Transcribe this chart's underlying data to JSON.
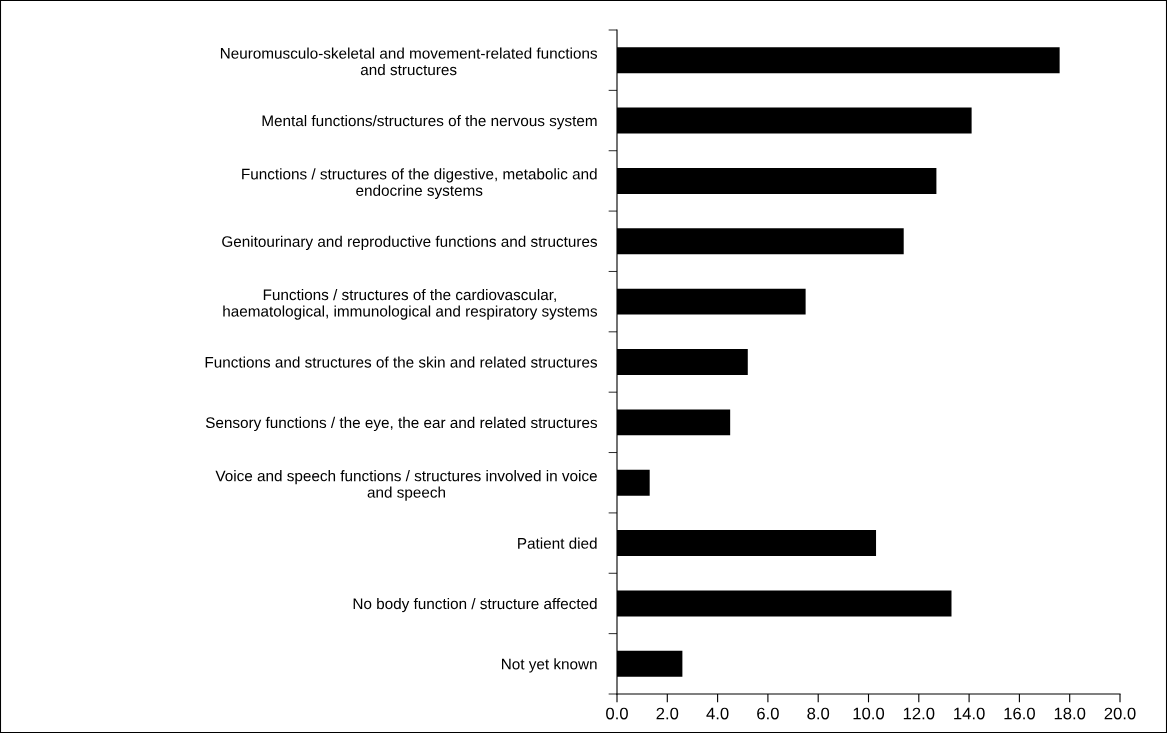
{
  "chart_data": {
    "type": "bar",
    "orientation": "horizontal",
    "categories": [
      "Neuromusculo-skeletal and movement-related functions\nand structures",
      "Mental functions/structures of the nervous system",
      "Functions / structures of the digestive, metabolic and\nendocrine systems",
      "Genitourinary and reproductive functions and structures",
      "Functions / structures of the cardiovascular,\nhaematological, immunological and respiratory systems",
      "Functions and structures of the skin and related structures",
      "Sensory functions / the eye, the ear and related structures",
      "Voice and speech functions / structures involved in voice\nand speech",
      "Patient died",
      "No body function / structure affected",
      "Not yet known"
    ],
    "values": [
      17.6,
      14.1,
      12.7,
      11.4,
      7.5,
      5.2,
      4.5,
      1.3,
      10.3,
      13.3,
      2.6
    ],
    "color": "#000000",
    "xlim": [
      0,
      20
    ],
    "xticks": [
      {
        "value": 0,
        "label": "0.0"
      },
      {
        "value": 2,
        "label": "2.0"
      },
      {
        "value": 4,
        "label": "4.0"
      },
      {
        "value": 6,
        "label": "6.0"
      },
      {
        "value": 8,
        "label": "8.0"
      },
      {
        "value": 10,
        "label": "10.0"
      },
      {
        "value": 12,
        "label": "12.0"
      },
      {
        "value": 14,
        "label": "14.0"
      },
      {
        "value": 16,
        "label": "16.0"
      },
      {
        "value": 18,
        "label": "18.0"
      },
      {
        "value": 20,
        "label": "20.0"
      }
    ],
    "grid": false
  }
}
